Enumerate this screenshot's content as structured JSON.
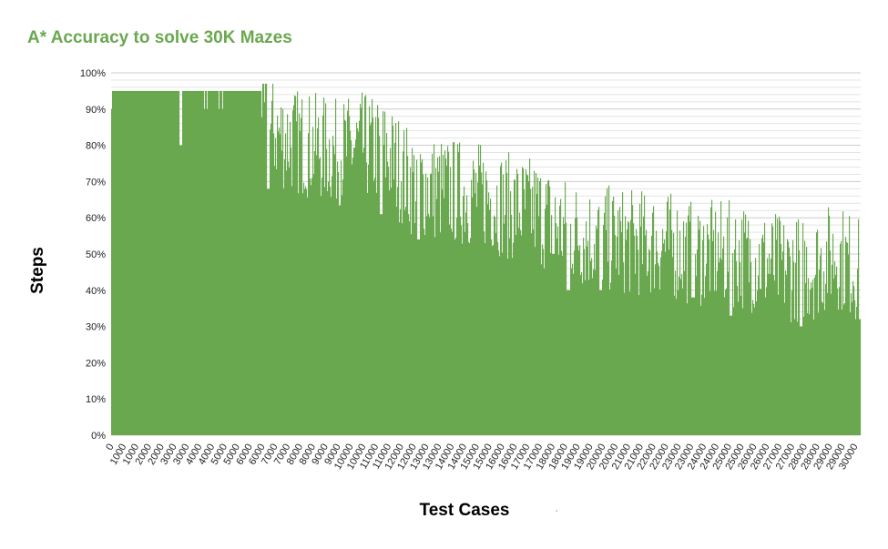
{
  "chart_data": {
    "type": "bar",
    "title": "A* Accuracy to solve 30K Mazes",
    "xlabel": "Test Cases",
    "ylabel": "Steps",
    "ylim": [
      0,
      100
    ],
    "y_ticks": [
      "0%",
      "10%",
      "20%",
      "30%",
      "40%",
      "50%",
      "60%",
      "70%",
      "80%",
      "90%",
      "100%"
    ],
    "x_ticks": [
      "0",
      "1000",
      "1000",
      "2000",
      "2000",
      "3000",
      "3000",
      "4000",
      "4000",
      "5000",
      "5000",
      "6000",
      "6000",
      "7000",
      "7000",
      "8000",
      "8000",
      "9000",
      "9000",
      "10000",
      "10000",
      "11000",
      "11000",
      "12000",
      "12000",
      "13000",
      "13000",
      "14000",
      "14000",
      "15000",
      "15000",
      "16000",
      "16000",
      "17000",
      "17000",
      "18000",
      "18000",
      "19000",
      "19000",
      "20000",
      "20000",
      "21000",
      "21000",
      "22000",
      "22000",
      "23000",
      "23000",
      "24000",
      "24000",
      "25000",
      "25000",
      "26000",
      "26000",
      "27000",
      "27000",
      "28000",
      "28000",
      "29000",
      "29000",
      "30000"
    ],
    "series": [
      {
        "color": "#6aa84f",
        "trend": [
          {
            "x": 0,
            "y": 95
          },
          {
            "x": 2500,
            "y": 95
          },
          {
            "x": 5000,
            "y": 95
          },
          {
            "x": 6000,
            "y": 95
          },
          {
            "x": 6200,
            "y": 85
          },
          {
            "x": 7000,
            "y": 82
          },
          {
            "x": 8000,
            "y": 80
          },
          {
            "x": 9000,
            "y": 78
          },
          {
            "x": 10000,
            "y": 80
          },
          {
            "x": 11000,
            "y": 78
          },
          {
            "x": 12000,
            "y": 70
          },
          {
            "x": 13000,
            "y": 68
          },
          {
            "x": 14000,
            "y": 67
          },
          {
            "x": 15000,
            "y": 66
          },
          {
            "x": 16000,
            "y": 63
          },
          {
            "x": 17000,
            "y": 62
          },
          {
            "x": 18000,
            "y": 57
          },
          {
            "x": 19000,
            "y": 55
          },
          {
            "x": 20000,
            "y": 54
          },
          {
            "x": 21000,
            "y": 53
          },
          {
            "x": 22000,
            "y": 53
          },
          {
            "x": 23000,
            "y": 51
          },
          {
            "x": 24000,
            "y": 50
          },
          {
            "x": 25000,
            "y": 50
          },
          {
            "x": 26000,
            "y": 48
          },
          {
            "x": 27000,
            "y": 46
          },
          {
            "x": 28000,
            "y": 46
          },
          {
            "x": 29000,
            "y": 50
          },
          {
            "x": 30000,
            "y": 45
          }
        ],
        "min_values": [
          {
            "x": 2800,
            "y": 80
          },
          {
            "x": 6300,
            "y": 68
          },
          {
            "x": 10800,
            "y": 61
          },
          {
            "x": 12300,
            "y": 54
          },
          {
            "x": 17700,
            "y": 50
          },
          {
            "x": 18300,
            "y": 40
          },
          {
            "x": 19600,
            "y": 40
          },
          {
            "x": 23300,
            "y": 38
          },
          {
            "x": 24800,
            "y": 33
          },
          {
            "x": 27600,
            "y": 30
          },
          {
            "x": 30000,
            "y": 32
          }
        ]
      }
    ]
  },
  "footnote": "´"
}
